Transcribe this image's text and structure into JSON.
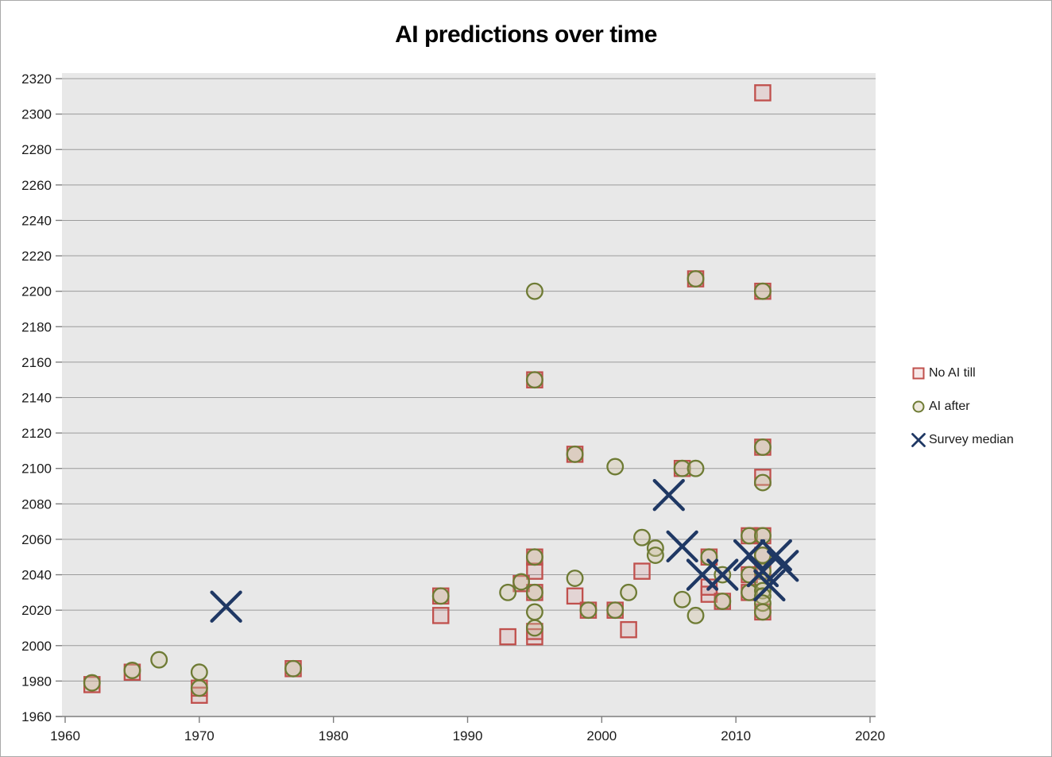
{
  "window": {
    "background": "#ffffff",
    "border_color": "#a9a9a9"
  },
  "chart_data": {
    "type": "scatter",
    "title": "AI predictions over time",
    "xlabel": "",
    "ylabel": "",
    "xlim": [
      1960,
      2020
    ],
    "ylim": [
      1960,
      2320
    ],
    "xticks": [
      1960,
      1970,
      1980,
      1990,
      2000,
      2010,
      2020
    ],
    "yticks": [
      1960,
      1980,
      2000,
      2020,
      2040,
      2060,
      2080,
      2100,
      2120,
      2140,
      2160,
      2180,
      2200,
      2220,
      2240,
      2260,
      2280,
      2300,
      2320
    ],
    "grid": "horizontal-only",
    "legend_position": "right-middle",
    "plot_background": "#e8e8e8",
    "gridline_color": "#9b9b9b",
    "axis_line_color": "#7d7d7d",
    "tick_label_color": "#1a1a1a",
    "series": [
      {
        "name": "No AI till",
        "marker": "square",
        "stroke": "#c0504d",
        "fill": "rgba(192,80,77,0.13)",
        "points": [
          [
            1962,
            1978
          ],
          [
            1965,
            1985
          ],
          [
            1970,
            1976
          ],
          [
            1970,
            1972
          ],
          [
            1977,
            1987
          ],
          [
            1988,
            2028
          ],
          [
            1988,
            2017
          ],
          [
            1993,
            2005
          ],
          [
            1994,
            2035
          ],
          [
            1995,
            2150
          ],
          [
            1995,
            2050
          ],
          [
            1995,
            2042
          ],
          [
            1995,
            2030
          ],
          [
            1995,
            2008
          ],
          [
            1995,
            2005
          ],
          [
            1998,
            2108
          ],
          [
            1998,
            2028
          ],
          [
            1999,
            2020
          ],
          [
            2001,
            2020
          ],
          [
            2002,
            2009
          ],
          [
            2003,
            2042
          ],
          [
            2006,
            2100
          ],
          [
            2007,
            2207
          ],
          [
            2008,
            2050
          ],
          [
            2008,
            2033
          ],
          [
            2008,
            2029
          ],
          [
            2009,
            2025
          ],
          [
            2011,
            2062
          ],
          [
            2011,
            2040
          ],
          [
            2011,
            2030
          ],
          [
            2012,
            2312
          ],
          [
            2012,
            2200
          ],
          [
            2012,
            2112
          ],
          [
            2012,
            2095
          ],
          [
            2012,
            2062
          ],
          [
            2012,
            2051
          ],
          [
            2012,
            2042
          ],
          [
            2012,
            2019
          ]
        ]
      },
      {
        "name": "AI after",
        "marker": "circle",
        "stroke": "#6e7b34",
        "fill": "rgba(205,192,158,0.35)",
        "points": [
          [
            1962,
            1979
          ],
          [
            1965,
            1986
          ],
          [
            1967,
            1992
          ],
          [
            1970,
            1985
          ],
          [
            1970,
            1976
          ],
          [
            1977,
            1987
          ],
          [
            1988,
            2028
          ],
          [
            1993,
            2030
          ],
          [
            1994,
            2036
          ],
          [
            1995,
            2200
          ],
          [
            1995,
            2150
          ],
          [
            1995,
            2050
          ],
          [
            1995,
            2030
          ],
          [
            1995,
            2019
          ],
          [
            1995,
            2010
          ],
          [
            1998,
            2108
          ],
          [
            1998,
            2038
          ],
          [
            1999,
            2020
          ],
          [
            2001,
            2101
          ],
          [
            2001,
            2020
          ],
          [
            2002,
            2030
          ],
          [
            2003,
            2061
          ],
          [
            2004,
            2055
          ],
          [
            2004,
            2051
          ],
          [
            2006,
            2100
          ],
          [
            2006,
            2026
          ],
          [
            2007,
            2207
          ],
          [
            2007,
            2100
          ],
          [
            2007,
            2017
          ],
          [
            2008,
            2050
          ],
          [
            2009,
            2040
          ],
          [
            2009,
            2025
          ],
          [
            2011,
            2062
          ],
          [
            2011,
            2040
          ],
          [
            2011,
            2030
          ],
          [
            2012,
            2200
          ],
          [
            2012,
            2112
          ],
          [
            2012,
            2092
          ],
          [
            2012,
            2062
          ],
          [
            2012,
            2051
          ],
          [
            2012,
            2042
          ],
          [
            2012,
            2036
          ],
          [
            2012,
            2031
          ],
          [
            2012,
            2028
          ],
          [
            2012,
            2024
          ],
          [
            2012,
            2019
          ]
        ]
      },
      {
        "name": "Survey median",
        "marker": "x",
        "stroke": "#1f3864",
        "fill": "none",
        "points": [
          [
            1972,
            2022
          ],
          [
            2005,
            2085
          ],
          [
            2006,
            2056
          ],
          [
            2007.5,
            2040
          ],
          [
            2009,
            2040
          ],
          [
            2011,
            2051
          ],
          [
            2013,
            2051
          ],
          [
            2012,
            2042
          ],
          [
            2013.5,
            2045
          ],
          [
            2012.5,
            2034
          ]
        ]
      }
    ]
  }
}
